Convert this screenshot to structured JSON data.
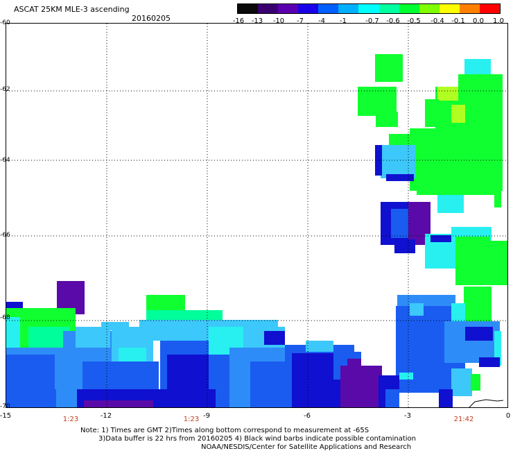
{
  "header": {
    "title": "ASCAT 25KM MLE-3 ascending",
    "date": "20160205"
  },
  "colorbar": {
    "labels": [
      "-16",
      "-13",
      "-10",
      "-7",
      "-4",
      "-1",
      "-0.7",
      "-0.6",
      "-0.5",
      "-0.4",
      "-0.1",
      "0.0",
      "1.0"
    ],
    "colors": [
      "#0a0a0a",
      "#3a0070",
      "#5a00b0",
      "#1a00e8",
      "#0060ff",
      "#00b0ff",
      "#00ffff",
      "#00ffa0",
      "#00ff30",
      "#80ff00",
      "#ffff00",
      "#ff8000",
      "#ff0000"
    ]
  },
  "axes": {
    "y_labels": [
      "-60",
      "-62",
      "-64",
      "-66",
      "-68",
      "-70"
    ],
    "x_labels": [
      "-15",
      "-12",
      "-9",
      "-6",
      "-3",
      "0"
    ],
    "time_labels": [
      "1:23",
      "1:23",
      "21:42"
    ]
  },
  "notes": {
    "line1": "Note: 1) Times are GMT 2)Times along bottom correspond to measurement at -65S",
    "line2": "3)Data buffer is 22 hrs from 20160205 4) Black wind barbs indicate possible contamination",
    "line3": "NOAA/NESDIS/Center for Satellite Applications and Research"
  },
  "map": {
    "lon_range": [
      -15,
      0
    ],
    "lat_range": [
      -70,
      -60
    ],
    "grid": true,
    "palette": {
      "violet": "#5a0aa8",
      "dark_blue": "#1010d0",
      "blue": "#1a5cf0",
      "mid_blue": "#2e8cf8",
      "light_blue": "#3cc8fa",
      "cyan": "#28f0f0",
      "green_cyan": "#00ff9a",
      "green": "#10ff30",
      "lime": "#b0ff20",
      "yellow": "#e8f020"
    }
  }
}
